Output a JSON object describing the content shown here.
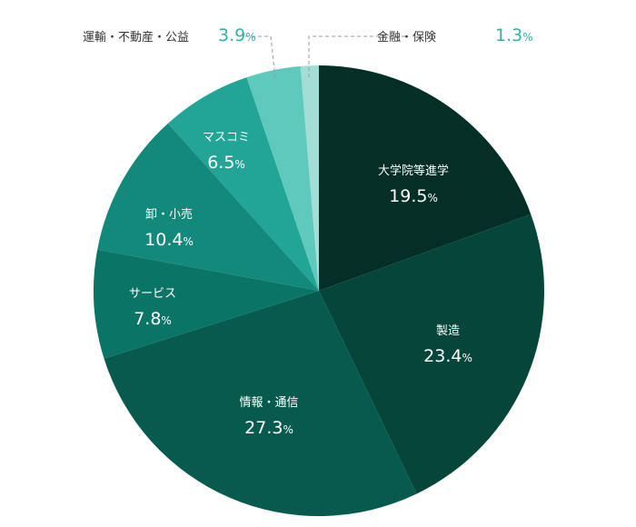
{
  "chart_data": {
    "type": "pie",
    "unit": "%",
    "slices": [
      {
        "label": "大学院等進学",
        "value": 19.5,
        "color": "#052e26"
      },
      {
        "label": "製造",
        "value": 23.4,
        "color": "#064539"
      },
      {
        "label": "情報・通信",
        "value": 27.3,
        "color": "#075b4e"
      },
      {
        "label": "サービス",
        "value": 7.8,
        "color": "#0a7467"
      },
      {
        "label": "卸・小売",
        "value": 10.4,
        "color": "#12897b"
      },
      {
        "label": "マスコミ",
        "value": 6.5,
        "color": "#22a596"
      },
      {
        "label": "運輸・不動産・公益",
        "value": 3.9,
        "color": "#5ec9bc"
      },
      {
        "label": "金融・保険",
        "value": 1.3,
        "color": "#a3ddd6"
      }
    ]
  }
}
